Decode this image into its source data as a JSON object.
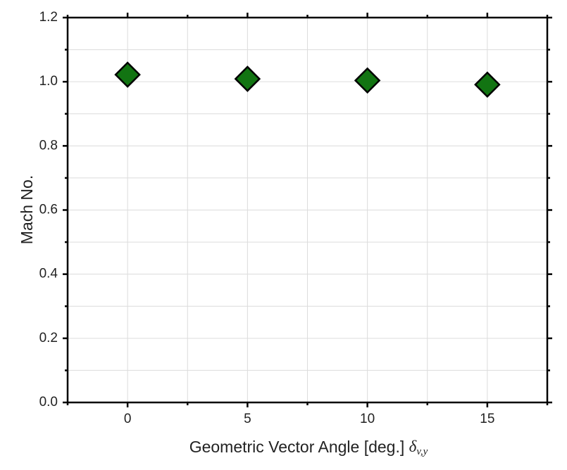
{
  "chart_data": {
    "type": "scatter",
    "x_label": "Geometric Vector Angle [deg.]",
    "x_label_symbol": "δ",
    "x_label_subscript": "v,y",
    "y_label": "Mach No.",
    "x": [
      0,
      5,
      10,
      15
    ],
    "series": [
      {
        "color": "#127412",
        "values": [
          1.022,
          1.009,
          1.004,
          0.991
        ]
      }
    ],
    "xlim": [
      -2.5,
      17.5
    ],
    "xticks": [
      0,
      5,
      10,
      15
    ],
    "ylim": [
      0,
      1.2
    ],
    "yticks": [
      {
        "value": 0,
        "label": "0.0"
      },
      {
        "value": 0.2,
        "label": "0.2"
      },
      {
        "value": 0.4,
        "label": "0.4"
      },
      {
        "value": 0.6,
        "label": "0.6"
      },
      {
        "value": 0.8,
        "label": "0.8"
      },
      {
        "value": 1,
        "label": "1.0"
      },
      {
        "value": 1.2,
        "label": "1.2"
      }
    ],
    "grid": true
  }
}
